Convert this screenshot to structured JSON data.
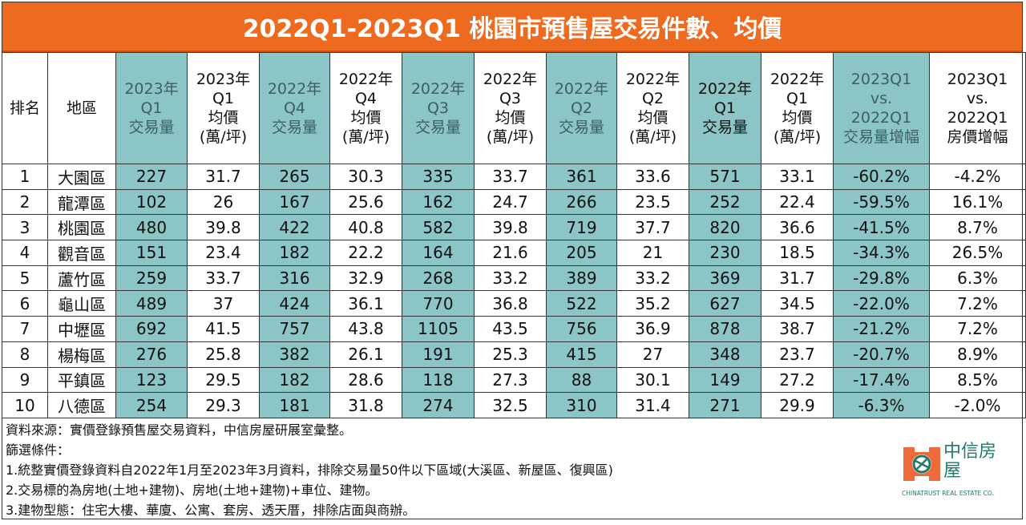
{
  "title": "2022Q1-2023Q1 桃園市預售屋交易件數、均價",
  "chart_data": {
    "type": "table",
    "title": "2022Q1-2023Q1 桃園市預售屋交易件數、均價",
    "columns": [
      "排名",
      "地區",
      "2023年\nQ1\n交易量",
      "2023年\nQ1\n均價\n(萬/坪)",
      "2022年\nQ4\n交易量",
      "2022年\nQ4\n均價\n(萬/坪)",
      "2022年\nQ3\n交易量",
      "2022年\nQ3\n均價\n(萬/坪)",
      "2022年\nQ2\n交易量",
      "2022年\nQ2\n均價\n(萬/坪)",
      "2022年\nQ1\n交易量",
      "2022年\nQ1\n均價\n(萬/坪)",
      "2023Q1\nvs.\n2022Q1\n交易量增幅",
      "2023Q1\nvs.\n2022Q1\n房價增幅"
    ],
    "rows": [
      [
        "1",
        "大園區",
        "227",
        "31.7",
        "265",
        "30.3",
        "335",
        "33.7",
        "361",
        "33.6",
        "571",
        "33.1",
        "-60.2%",
        "-4.2%"
      ],
      [
        "2",
        "龍潭區",
        "102",
        "26",
        "167",
        "25.6",
        "162",
        "24.7",
        "266",
        "23.5",
        "252",
        "22.4",
        "-59.5%",
        "16.1%"
      ],
      [
        "3",
        "桃園區",
        "480",
        "39.8",
        "422",
        "40.8",
        "582",
        "39.8",
        "719",
        "37.7",
        "820",
        "36.6",
        "-41.5%",
        "8.7%"
      ],
      [
        "4",
        "觀音區",
        "151",
        "23.4",
        "182",
        "22.2",
        "164",
        "21.6",
        "205",
        "21",
        "230",
        "18.5",
        "-34.3%",
        "26.5%"
      ],
      [
        "5",
        "蘆竹區",
        "259",
        "33.7",
        "316",
        "32.9",
        "268",
        "33.2",
        "389",
        "33.2",
        "369",
        "31.7",
        "-29.8%",
        "6.3%"
      ],
      [
        "6",
        "龜山區",
        "489",
        "37",
        "424",
        "36.1",
        "770",
        "36.8",
        "522",
        "35.2",
        "627",
        "34.5",
        "-22.0%",
        "7.2%"
      ],
      [
        "7",
        "中壢區",
        "692",
        "41.5",
        "757",
        "43.8",
        "1105",
        "43.5",
        "756",
        "36.9",
        "878",
        "38.7",
        "-21.2%",
        "7.2%"
      ],
      [
        "8",
        "楊梅區",
        "276",
        "25.8",
        "382",
        "26.1",
        "191",
        "25.3",
        "415",
        "27",
        "348",
        "23.7",
        "-20.7%",
        "8.9%"
      ],
      [
        "9",
        "平鎮區",
        "123",
        "29.5",
        "182",
        "28.6",
        "118",
        "27.3",
        "88",
        "30.1",
        "149",
        "27.2",
        "-17.4%",
        "8.5%"
      ],
      [
        "10",
        "八德區",
        "254",
        "29.3",
        "181",
        "31.8",
        "274",
        "32.5",
        "310",
        "31.4",
        "271",
        "29.9",
        "-6.3%",
        "-2.0%"
      ]
    ]
  },
  "footer": [
    "資料來源：實價登錄預售屋交易資料，中信房屋研展室彙整。",
    "篩選條件：",
    "1.統整實價登錄資料自2022年1月至2023年3月資料，排除交易量50件以下區域(大溪區、新屋區、復興區)",
    "2.交易標的為房地(土地+建物)、房地(土地+建物)+車位、建物。",
    "3.建物型態：住宅大樓、華廈、公寓、套房、透天厝，排除店面與商辦。"
  ],
  "logo": {
    "name": "中信房屋",
    "sub": "CHINATRUST REAL ESTATE CO."
  },
  "colors": {
    "title_bg": "#ee6a1e",
    "teal": "#8cc5c5"
  }
}
